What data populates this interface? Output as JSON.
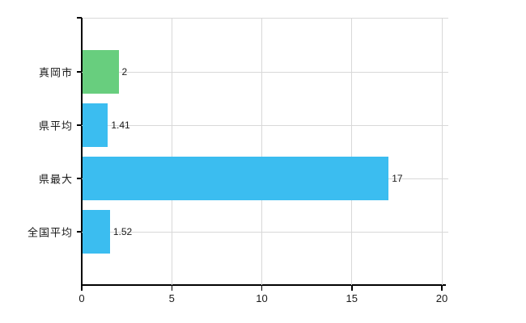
{
  "page": {
    "background": "#ffffff"
  },
  "chart_data": {
    "type": "bar",
    "orientation": "horizontal",
    "title": "",
    "xlabel": "",
    "ylabel": "",
    "categories": [
      "真岡市",
      "県平均",
      "県最大",
      "全国平均"
    ],
    "values": [
      2,
      1.41,
      17,
      1.52
    ],
    "value_labels": [
      "2",
      "1.41",
      "17",
      "1.52"
    ],
    "bar_colors": [
      "#68ce7e",
      "#3bbdf0",
      "#3bbdf0",
      "#3bbdf0"
    ],
    "xlim": [
      0,
      20
    ],
    "x_ticks": [
      0,
      5,
      10,
      15,
      20
    ],
    "x_tick_labels": [
      "0",
      "5",
      "10",
      "15",
      "20"
    ],
    "grid": true,
    "legend": "none",
    "colors": {
      "bar_default": "#3bbdf0",
      "bar_highlight": "#68ce7e",
      "gridline": "#d8d8d8",
      "axis": "#000000",
      "text": "#1a1a1a"
    }
  }
}
